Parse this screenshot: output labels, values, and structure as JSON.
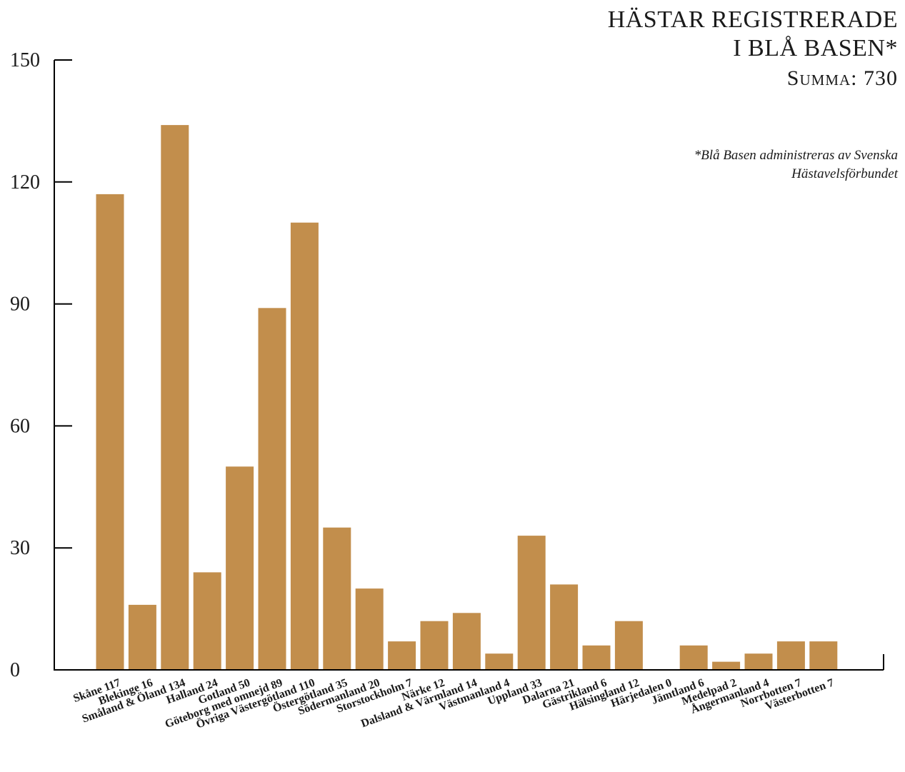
{
  "title_line1": "HÄSTAR REGISTRERADE",
  "title_line2": "I BLÅ BASEN*",
  "subtitle": "Summa: 730",
  "footnote": "*Blå Basen administreras av Svenska Hästavelsförbundet",
  "colors": {
    "bar": "#C28E4C",
    "axis": "#000000",
    "text": "#1a1a1a"
  },
  "chart_data": {
    "type": "bar",
    "categories": [
      "Skåne",
      "Blekinge",
      "Småland & Öland",
      "Halland",
      "Gotland",
      "Göteborg med omnejd",
      "Övriga Västergötland",
      "Östergötland",
      "Södermanland",
      "Storstockholm",
      "Närke",
      "Dalsland & Värmland",
      "Västmanland",
      "Uppland",
      "Dalarna",
      "Gästrikland",
      "Hälsingland",
      "Härjedalen",
      "Jämtland",
      "Medelpad",
      "Ångermanland",
      "Norrbotten",
      "Västerbotten"
    ],
    "tick_labels": [
      "Skåne 117",
      "Blekinge 16",
      "Småland & Öland 134",
      "Halland 24",
      "Gotland 50",
      "Göteborg med omnejd 89",
      "Övriga Västergötland 110",
      "Östergötland 35",
      "Södermanland 20",
      "Storstockholm 7",
      "Närke 12",
      "Dalsland & Värmland 14",
      "Västmanland 4",
      "Uppland 33",
      "Dalarna 21",
      "Gästrikland 6",
      "Hälsingland 12",
      "Härjedalen 0",
      "Jämtland 6",
      "Medelpad 2",
      "Ångermanland 4",
      "Norrbotten 7",
      "Västerbotten 7"
    ],
    "values": [
      117,
      16,
      134,
      24,
      50,
      89,
      110,
      35,
      20,
      7,
      12,
      14,
      4,
      33,
      21,
      6,
      12,
      0,
      6,
      2,
      4,
      7,
      7
    ],
    "ylim": [
      0,
      150
    ],
    "yticks": [
      0,
      30,
      60,
      90,
      120,
      150
    ],
    "grid": false,
    "legend": "none"
  }
}
